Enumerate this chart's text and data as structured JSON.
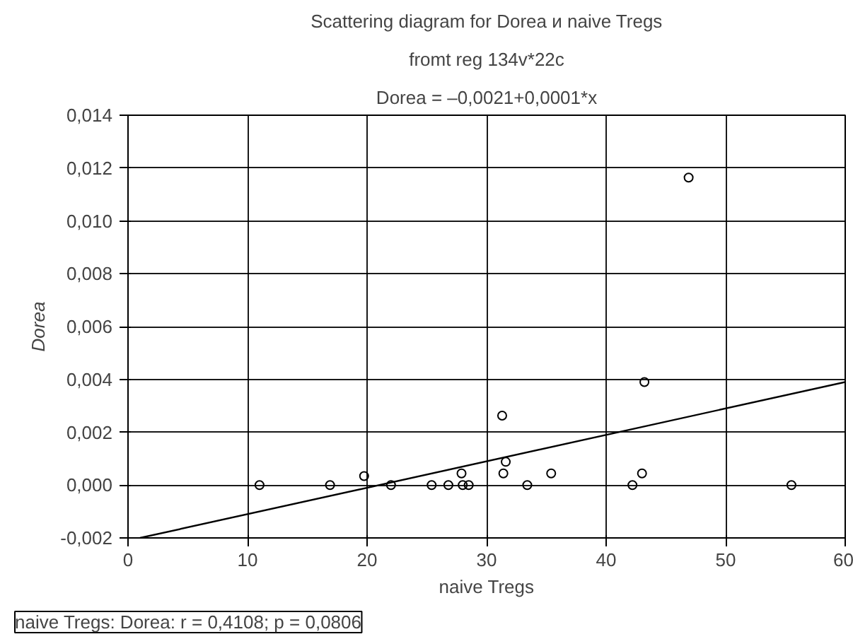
{
  "chart_data": {
    "type": "scatter",
    "title": "Scattering diagram for Dorea и naive Tregs",
    "subtitle": "fromt reg 134v*22c",
    "xlabel": "naive Tregs",
    "ylabel": "Dorea",
    "annotations": [
      "Dorea = –0,0021+0,0001*x",
      "naive Tregs: Dorea: r = 0,4108; p = 0,0806"
    ],
    "xlim": [
      0,
      60
    ],
    "xticks": [
      0,
      10,
      20,
      30,
      40,
      50,
      60
    ],
    "ylim": [
      -0.002,
      0.014
    ],
    "yticks": [
      {
        "value": -0.002,
        "label": "-0,002"
      },
      {
        "value": 0,
        "label": "0,000"
      },
      {
        "value": 0.002,
        "label": "0,002"
      },
      {
        "value": 0.004,
        "label": "0,004"
      },
      {
        "value": 0.006,
        "label": "0,006"
      },
      {
        "value": 0.008,
        "label": "0,008"
      },
      {
        "value": 0.01,
        "label": "0,010"
      },
      {
        "value": 0.012,
        "label": "0,012"
      },
      {
        "value": 0.014,
        "label": "0,014"
      }
    ],
    "grid": true,
    "series": [
      {
        "color": "#000000",
        "marker": "circle",
        "x": [
          11.0,
          16.9,
          19.75,
          22.0,
          25.4,
          26.8,
          27.9,
          28.0,
          28.5,
          31.3,
          31.6,
          31.4,
          33.4,
          35.4,
          42.2,
          43.0,
          43.2,
          46.9,
          55.5
        ],
        "values": [
          0,
          0,
          0.00034,
          0,
          0,
          0,
          0.00044,
          0,
          0,
          0.00263,
          0.00088,
          0.00044,
          0,
          0.00044,
          0,
          0.00044,
          0.0039,
          0.01164,
          0
        ]
      },
      {
        "type": "line",
        "color": "#000000",
        "x": [
          1,
          60
        ],
        "values": [
          -0.002,
          0.0039
        ]
      }
    ]
  }
}
